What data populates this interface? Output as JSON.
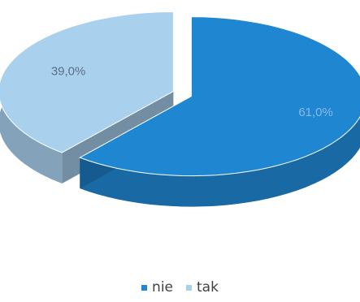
{
  "chart_data": {
    "type": "pie",
    "categories": [
      "nie",
      "tak"
    ],
    "values": [
      61.0,
      39.0
    ],
    "data_labels": [
      "61,0%",
      "39,0%"
    ],
    "colors": [
      "#1f86d2",
      "#a9d1ee"
    ],
    "label_colors": [
      "#8cb8e3",
      "#5b6f85"
    ],
    "title": "",
    "legend_position": "bottom",
    "style": "3d-exploded"
  },
  "legend": {
    "items": [
      {
        "label": "nie",
        "color": "#1f86d2"
      },
      {
        "label": "tak",
        "color": "#a9d1ee"
      }
    ]
  }
}
